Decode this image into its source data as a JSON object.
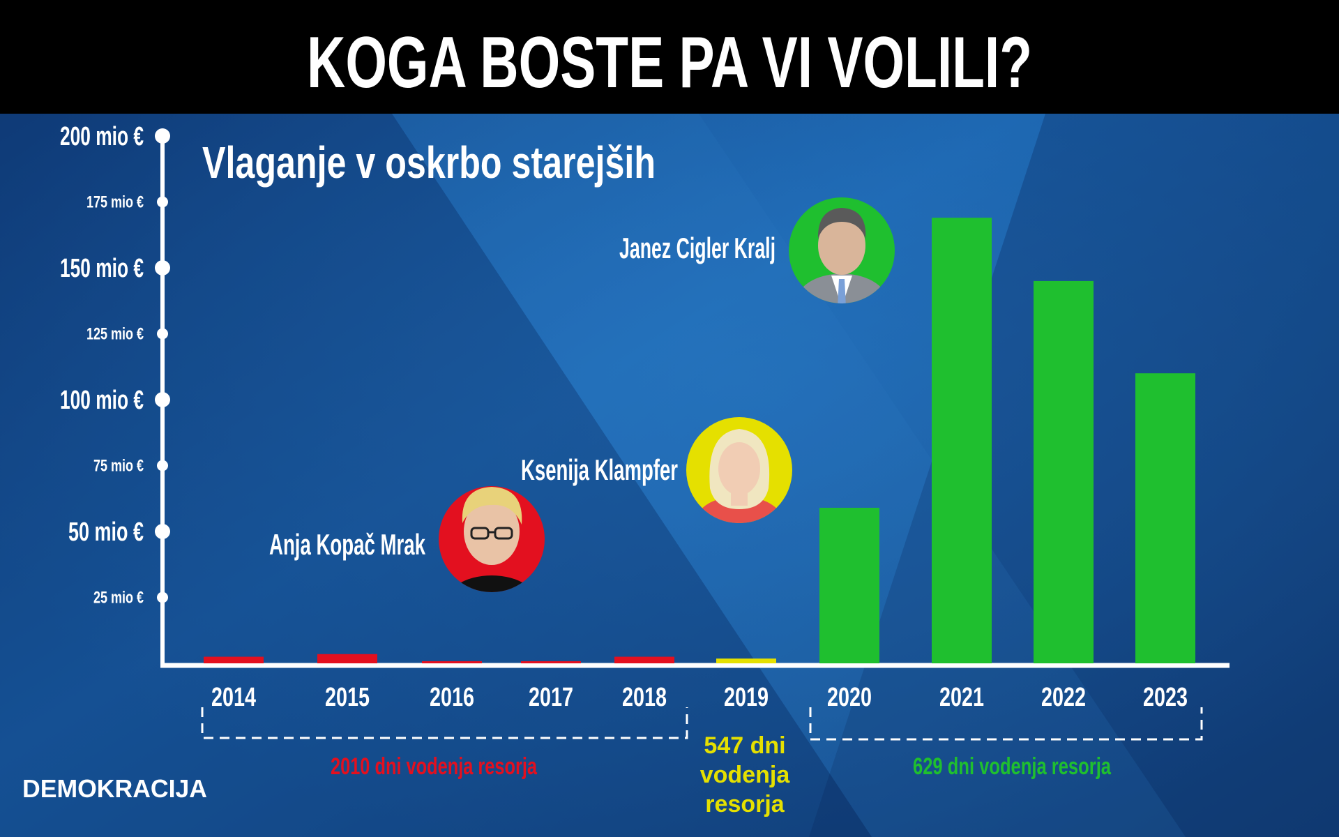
{
  "header": {
    "title": "KOGA BOSTE PA VI VOLILI?"
  },
  "brand": {
    "logo_text": "DEMOKRACIJA"
  },
  "colors": {
    "background": "#1b4f8c",
    "header_bg": "#000000",
    "axis": "#ffffff",
    "red": "#e3101f",
    "yellow": "#e5e000",
    "green": "#1fbf2f"
  },
  "chart_data": {
    "type": "bar",
    "title": "Vlaganje v oskrbo starejših",
    "categories": [
      "2014",
      "2015",
      "2016",
      "2017",
      "2018",
      "2019",
      "2020",
      "2021",
      "2022",
      "2023"
    ],
    "values": [
      2.5,
      3.5,
      0.8,
      0.8,
      2.5,
      1.8,
      59,
      169,
      145,
      110
    ],
    "bar_colors": [
      "red",
      "red",
      "red",
      "red",
      "red",
      "yellow",
      "green",
      "green",
      "green",
      "green"
    ],
    "ylim": [
      0,
      200
    ],
    "yticks": [
      {
        "value": 25,
        "label": "25 mio €",
        "major": false
      },
      {
        "value": 50,
        "label": "50 mio €",
        "major": true
      },
      {
        "value": 75,
        "label": "75 mio €",
        "major": false
      },
      {
        "value": 100,
        "label": "100 mio €",
        "major": true
      },
      {
        "value": 125,
        "label": "125 mio €",
        "major": false
      },
      {
        "value": 150,
        "label": "150 mio €",
        "major": true
      },
      {
        "value": 175,
        "label": "175 mio €",
        "major": false
      },
      {
        "value": 200,
        "label": "200 mio €",
        "major": true
      }
    ],
    "grid": false,
    "ministers": [
      {
        "name": "Anja Kopač Mrak",
        "color": "red"
      },
      {
        "name": "Ksenija Klampfer",
        "color": "yellow"
      },
      {
        "name": "Janez Cigler Kralj",
        "color": "green"
      }
    ],
    "terms": [
      {
        "text": "2010 dni vodenja resorja",
        "color": "red"
      },
      {
        "text": [
          "547 dni",
          "vodenja",
          "resorja"
        ],
        "color": "yellow"
      },
      {
        "text": "629 dni vodenja resorja",
        "color": "green"
      }
    ]
  }
}
